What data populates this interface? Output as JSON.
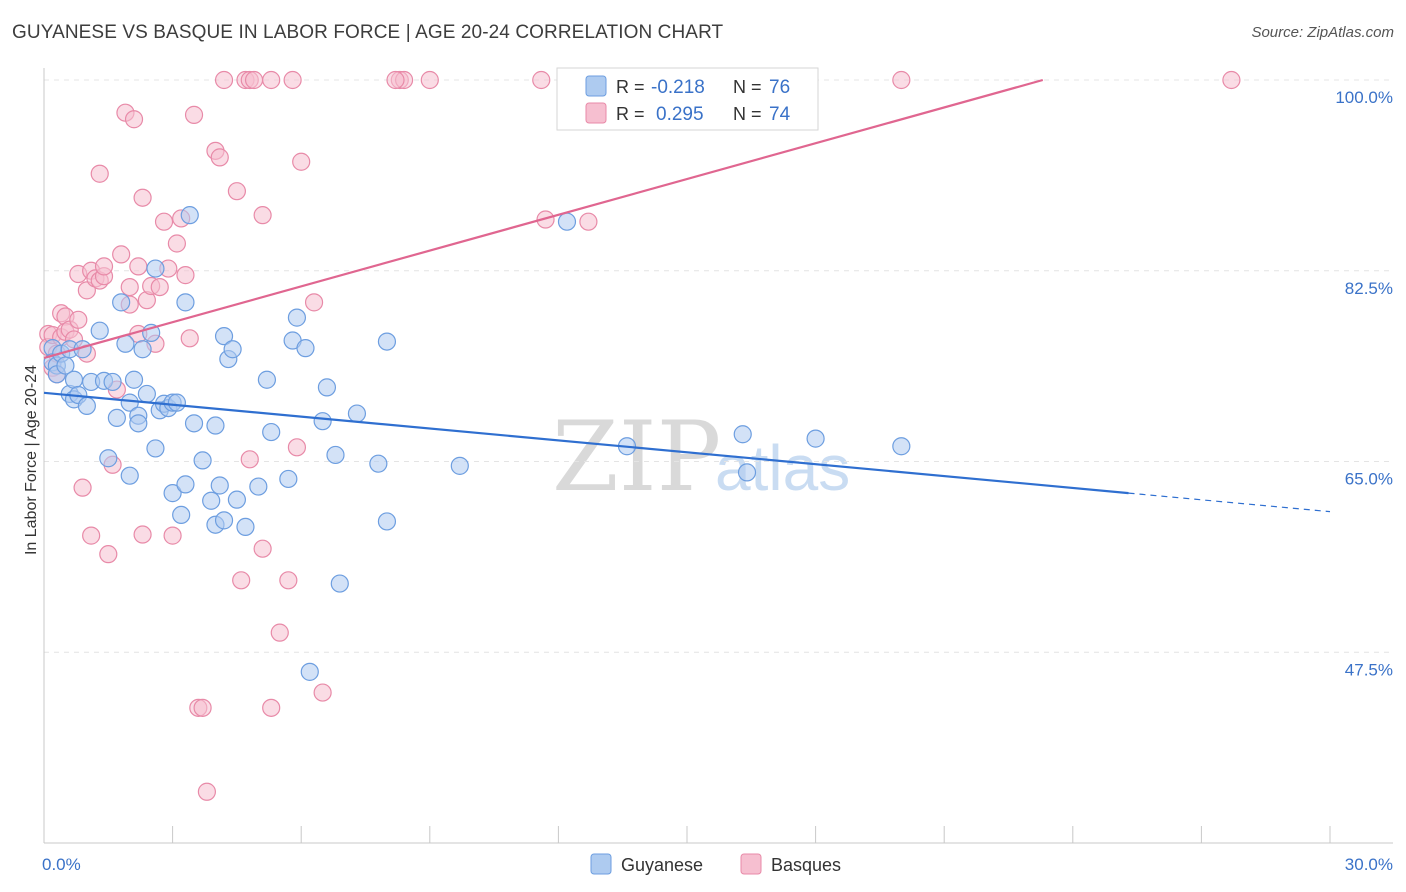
{
  "title": "GUYANESE VS BASQUE IN LABOR FORCE | AGE 20-24 CORRELATION CHART",
  "source": "Source: ZipAtlas.com",
  "watermark": {
    "zip": "ZIP",
    "atlas": "atlas"
  },
  "colors": {
    "guyanese_fill": "#aecbf0",
    "guyanese_stroke": "#6d9ee0",
    "guyanese_line": "#2f6fd0",
    "basque_fill": "#f6bfd0",
    "basque_stroke": "#e88aa8",
    "basque_line": "#e06690",
    "accent_text": "#3a72c8",
    "grid": "#e4e4e4"
  },
  "legend": {
    "rows": [
      {
        "r_label": "R =",
        "r_value": "-0.218",
        "n_label": "N =",
        "n_value": "76"
      },
      {
        "r_label": "R =",
        "r_value": "0.295",
        "n_label": "N =",
        "n_value": "74"
      }
    ]
  },
  "bottom_legend": {
    "items": [
      "Guyanese",
      "Basques"
    ]
  },
  "chart_data": {
    "type": "scatter",
    "title": "GUYANESE VS BASQUE IN LABOR FORCE | AGE 20-24 CORRELATION CHART",
    "ylabel": "In Labor Force | Age 20-24",
    "xlabel": "",
    "xlim": [
      0,
      30
    ],
    "ylim": [
      30,
      100
    ],
    "x_tick_labels": [
      "0.0%",
      "30.0%"
    ],
    "y_tick_labels": [
      "100.0%",
      "82.5%",
      "65.0%",
      "47.5%"
    ],
    "y_ticks": [
      100,
      82.5,
      65,
      47.5
    ],
    "grid": true,
    "legend_position": "top-center",
    "series": [
      {
        "name": "Guyanese",
        "r": -0.218,
        "n": 76,
        "trend": {
          "x0": 0,
          "y0": 71.3,
          "x1": 25.3,
          "y1": 62.1,
          "dash_to_x": 30,
          "dash_to_y": 60.4
        },
        "points": [
          [
            0.2,
            75.4
          ],
          [
            0.2,
            74.1
          ],
          [
            0.3,
            73.8
          ],
          [
            0.3,
            73.0
          ],
          [
            0.4,
            74.9
          ],
          [
            0.5,
            73.8
          ],
          [
            0.6,
            75.3
          ],
          [
            0.6,
            71.2
          ],
          [
            0.7,
            72.5
          ],
          [
            0.7,
            70.7
          ],
          [
            0.8,
            71.1
          ],
          [
            0.9,
            75.3
          ],
          [
            1.0,
            70.1
          ],
          [
            1.1,
            72.3
          ],
          [
            1.3,
            77.0
          ],
          [
            1.4,
            72.4
          ],
          [
            1.5,
            65.3
          ],
          [
            1.6,
            72.3
          ],
          [
            1.7,
            69.0
          ],
          [
            1.8,
            79.6
          ],
          [
            1.9,
            75.8
          ],
          [
            2.0,
            63.7
          ],
          [
            2.0,
            70.4
          ],
          [
            2.1,
            72.5
          ],
          [
            2.2,
            69.2
          ],
          [
            2.2,
            68.5
          ],
          [
            2.3,
            75.3
          ],
          [
            2.4,
            71.2
          ],
          [
            2.5,
            76.8
          ],
          [
            2.6,
            82.7
          ],
          [
            2.6,
            66.2
          ],
          [
            2.7,
            69.7
          ],
          [
            2.8,
            70.3
          ],
          [
            2.9,
            69.9
          ],
          [
            3.0,
            62.1
          ],
          [
            3.0,
            70.4
          ],
          [
            3.1,
            70.4
          ],
          [
            3.2,
            60.1
          ],
          [
            3.3,
            79.6
          ],
          [
            3.3,
            62.9
          ],
          [
            3.4,
            87.6
          ],
          [
            3.5,
            68.5
          ],
          [
            3.7,
            65.1
          ],
          [
            3.9,
            61.4
          ],
          [
            4.0,
            59.2
          ],
          [
            4.0,
            68.3
          ],
          [
            4.1,
            62.8
          ],
          [
            4.2,
            59.6
          ],
          [
            4.2,
            76.5
          ],
          [
            4.3,
            74.4
          ],
          [
            4.4,
            75.3
          ],
          [
            4.5,
            61.5
          ],
          [
            4.7,
            59.0
          ],
          [
            5.0,
            62.7
          ],
          [
            5.2,
            72.5
          ],
          [
            5.3,
            67.7
          ],
          [
            5.7,
            63.4
          ],
          [
            5.8,
            76.1
          ],
          [
            5.9,
            78.2
          ],
          [
            6.1,
            75.4
          ],
          [
            6.2,
            45.7
          ],
          [
            6.5,
            68.7
          ],
          [
            6.6,
            71.8
          ],
          [
            6.8,
            65.6
          ],
          [
            6.9,
            53.8
          ],
          [
            7.3,
            69.4
          ],
          [
            7.8,
            64.8
          ],
          [
            8.0,
            59.5
          ],
          [
            9.7,
            64.6
          ],
          [
            12.2,
            87.0
          ],
          [
            13.6,
            66.4
          ],
          [
            16.3,
            67.5
          ],
          [
            16.4,
            64.0
          ],
          [
            18.0,
            67.1
          ],
          [
            20.0,
            66.4
          ],
          [
            8.0,
            76.0
          ]
        ]
      },
      {
        "name": "Basques",
        "r": 0.295,
        "n": 74,
        "trend": {
          "x0": 0,
          "y0": 74.5,
          "x1": 23.3,
          "y1": 100.0
        },
        "points": [
          [
            0.1,
            76.7
          ],
          [
            0.1,
            75.5
          ],
          [
            0.2,
            73.6
          ],
          [
            0.2,
            76.6
          ],
          [
            0.3,
            73.0
          ],
          [
            0.3,
            74.9
          ],
          [
            0.4,
            78.6
          ],
          [
            0.4,
            76.4
          ],
          [
            0.5,
            78.3
          ],
          [
            0.5,
            76.9
          ],
          [
            0.6,
            77.1
          ],
          [
            0.7,
            76.2
          ],
          [
            0.8,
            78.0
          ],
          [
            0.8,
            82.2
          ],
          [
            0.9,
            62.6
          ],
          [
            1.0,
            74.9
          ],
          [
            1.0,
            80.7
          ],
          [
            1.1,
            82.5
          ],
          [
            1.1,
            58.2
          ],
          [
            1.2,
            81.8
          ],
          [
            1.3,
            81.6
          ],
          [
            1.3,
            91.4
          ],
          [
            1.4,
            82.0
          ],
          [
            1.4,
            82.9
          ],
          [
            1.5,
            56.5
          ],
          [
            1.6,
            64.7
          ],
          [
            1.7,
            71.6
          ],
          [
            1.8,
            84.0
          ],
          [
            1.9,
            97.0
          ],
          [
            2.0,
            81.0
          ],
          [
            2.0,
            79.4
          ],
          [
            2.1,
            96.4
          ],
          [
            2.2,
            76.7
          ],
          [
            2.2,
            82.9
          ],
          [
            2.3,
            89.2
          ],
          [
            2.3,
            58.3
          ],
          [
            2.4,
            79.8
          ],
          [
            2.5,
            81.1
          ],
          [
            2.6,
            75.8
          ],
          [
            2.7,
            81.0
          ],
          [
            2.8,
            87.0
          ],
          [
            2.9,
            82.7
          ],
          [
            3.0,
            58.2
          ],
          [
            3.1,
            85.0
          ],
          [
            3.2,
            87.3
          ],
          [
            3.3,
            82.1
          ],
          [
            3.4,
            76.3
          ],
          [
            3.5,
            96.8
          ],
          [
            3.6,
            42.4
          ],
          [
            3.7,
            42.4
          ],
          [
            3.8,
            34.7
          ],
          [
            4.0,
            93.5
          ],
          [
            4.1,
            92.9
          ],
          [
            4.2,
            100.0
          ],
          [
            4.5,
            89.8
          ],
          [
            4.6,
            54.1
          ],
          [
            4.7,
            100.0
          ],
          [
            4.8,
            65.2
          ],
          [
            4.8,
            100.0
          ],
          [
            4.9,
            100.0
          ],
          [
            5.1,
            57.0
          ],
          [
            5.1,
            87.6
          ],
          [
            5.3,
            42.4
          ],
          [
            5.3,
            100.0
          ],
          [
            5.5,
            49.3
          ],
          [
            5.7,
            54.1
          ],
          [
            5.8,
            100.0
          ],
          [
            5.9,
            66.3
          ],
          [
            6.0,
            92.5
          ],
          [
            6.3,
            79.6
          ],
          [
            6.5,
            43.8
          ],
          [
            8.3,
            100.0
          ],
          [
            8.4,
            100.0
          ],
          [
            9.0,
            100.0
          ]
        ],
        "extra_points": [
          [
            11.7,
            87.2
          ],
          [
            11.6,
            100.0
          ],
          [
            12.7,
            87.0
          ],
          [
            20.0,
            100.0
          ],
          [
            27.7,
            100.0
          ],
          [
            8.2,
            100.0
          ]
        ]
      }
    ]
  }
}
